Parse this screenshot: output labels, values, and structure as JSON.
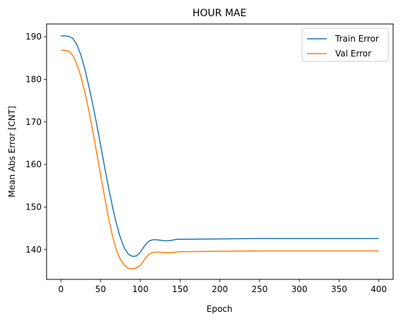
{
  "chart_data": {
    "type": "line",
    "title": "HOUR MAE",
    "xlabel": "Epoch",
    "ylabel": "Mean Abs Error [CNT]",
    "xlim": [
      -18,
      418
    ],
    "ylim": [
      133,
      193
    ],
    "xticks": [
      0,
      50,
      100,
      150,
      200,
      250,
      300,
      350,
      400
    ],
    "yticks": [
      140,
      150,
      160,
      170,
      180,
      190
    ],
    "grid": false,
    "legend_position": "top-right",
    "series": [
      {
        "name": "Train Error",
        "color": "#1f77b4",
        "points": [
          [
            0,
            190.2
          ],
          [
            5,
            190.2
          ],
          [
            10,
            190.1
          ],
          [
            15,
            189.6
          ],
          [
            20,
            188.2
          ],
          [
            25,
            185.8
          ],
          [
            30,
            182.5
          ],
          [
            35,
            178.5
          ],
          [
            40,
            174.2
          ],
          [
            45,
            169.5
          ],
          [
            50,
            164.5
          ],
          [
            55,
            159.4
          ],
          [
            60,
            154.5
          ],
          [
            65,
            150.0
          ],
          [
            70,
            146.0
          ],
          [
            75,
            142.7
          ],
          [
            80,
            140.3
          ],
          [
            85,
            138.9
          ],
          [
            90,
            138.4
          ],
          [
            95,
            138.5
          ],
          [
            100,
            139.4
          ],
          [
            105,
            140.8
          ],
          [
            110,
            141.9
          ],
          [
            115,
            142.3
          ],
          [
            120,
            142.3
          ],
          [
            125,
            142.2
          ],
          [
            130,
            142.1
          ],
          [
            135,
            142.1
          ],
          [
            140,
            142.2
          ],
          [
            145,
            142.4
          ],
          [
            150,
            142.4
          ],
          [
            200,
            142.5
          ],
          [
            250,
            142.6
          ],
          [
            300,
            142.6
          ],
          [
            350,
            142.6
          ],
          [
            400,
            142.6
          ]
        ]
      },
      {
        "name": "Val Error",
        "color": "#ff7f0e",
        "points": [
          [
            0,
            186.8
          ],
          [
            5,
            186.8
          ],
          [
            10,
            186.6
          ],
          [
            15,
            185.6
          ],
          [
            20,
            183.6
          ],
          [
            25,
            180.8
          ],
          [
            30,
            177.1
          ],
          [
            35,
            172.8
          ],
          [
            40,
            167.9
          ],
          [
            45,
            162.8
          ],
          [
            50,
            157.5
          ],
          [
            55,
            152.4
          ],
          [
            60,
            147.4
          ],
          [
            65,
            143.1
          ],
          [
            70,
            139.8
          ],
          [
            75,
            137.6
          ],
          [
            80,
            136.3
          ],
          [
            85,
            135.6
          ],
          [
            90,
            135.5
          ],
          [
            95,
            135.7
          ],
          [
            100,
            136.3
          ],
          [
            105,
            137.6
          ],
          [
            110,
            138.8
          ],
          [
            115,
            139.3
          ],
          [
            120,
            139.4
          ],
          [
            125,
            139.4
          ],
          [
            130,
            139.3
          ],
          [
            135,
            139.3
          ],
          [
            140,
            139.3
          ],
          [
            145,
            139.4
          ],
          [
            150,
            139.5
          ],
          [
            200,
            139.6
          ],
          [
            250,
            139.7
          ],
          [
            300,
            139.7
          ],
          [
            350,
            139.7
          ],
          [
            400,
            139.7
          ]
        ]
      }
    ]
  }
}
